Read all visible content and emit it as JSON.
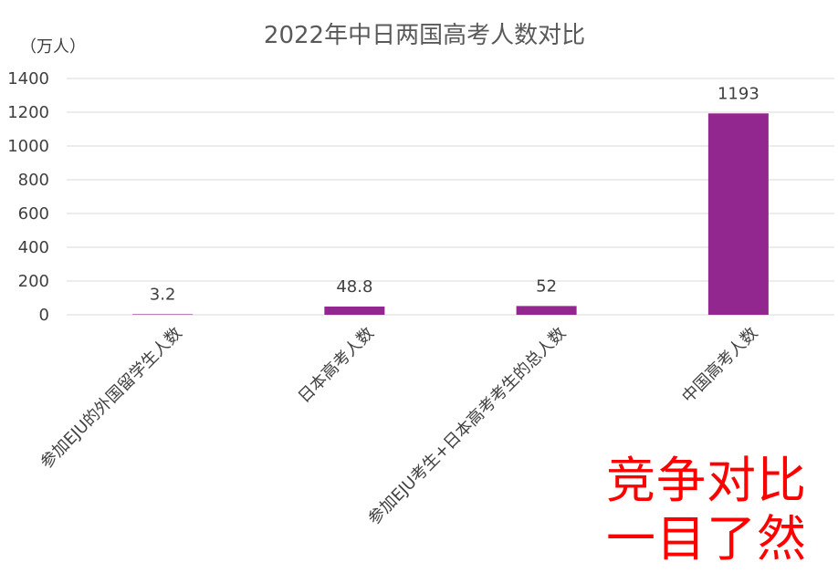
{
  "chart_data": {
    "type": "bar",
    "title": "2022年中日两国高考人数对比",
    "ylabel": "（万人）",
    "categories": [
      "参加EJU的外国留学生人数",
      "日本高考人数",
      "参加EJU考生+日本高考考生的总人数",
      "中国高考人数"
    ],
    "values": [
      3.2,
      48.8,
      52,
      1193
    ],
    "data_labels": [
      "3.2",
      "48.8",
      "52",
      "1193"
    ],
    "ylim": [
      0,
      1400
    ],
    "yticks": [
      0,
      200,
      400,
      600,
      800,
      1000,
      1200,
      1400
    ],
    "grid": true,
    "bar_color": "#92278f"
  },
  "annotation": {
    "line1": "竞争对比",
    "line2": "一目了然",
    "color": "#ff0000"
  }
}
